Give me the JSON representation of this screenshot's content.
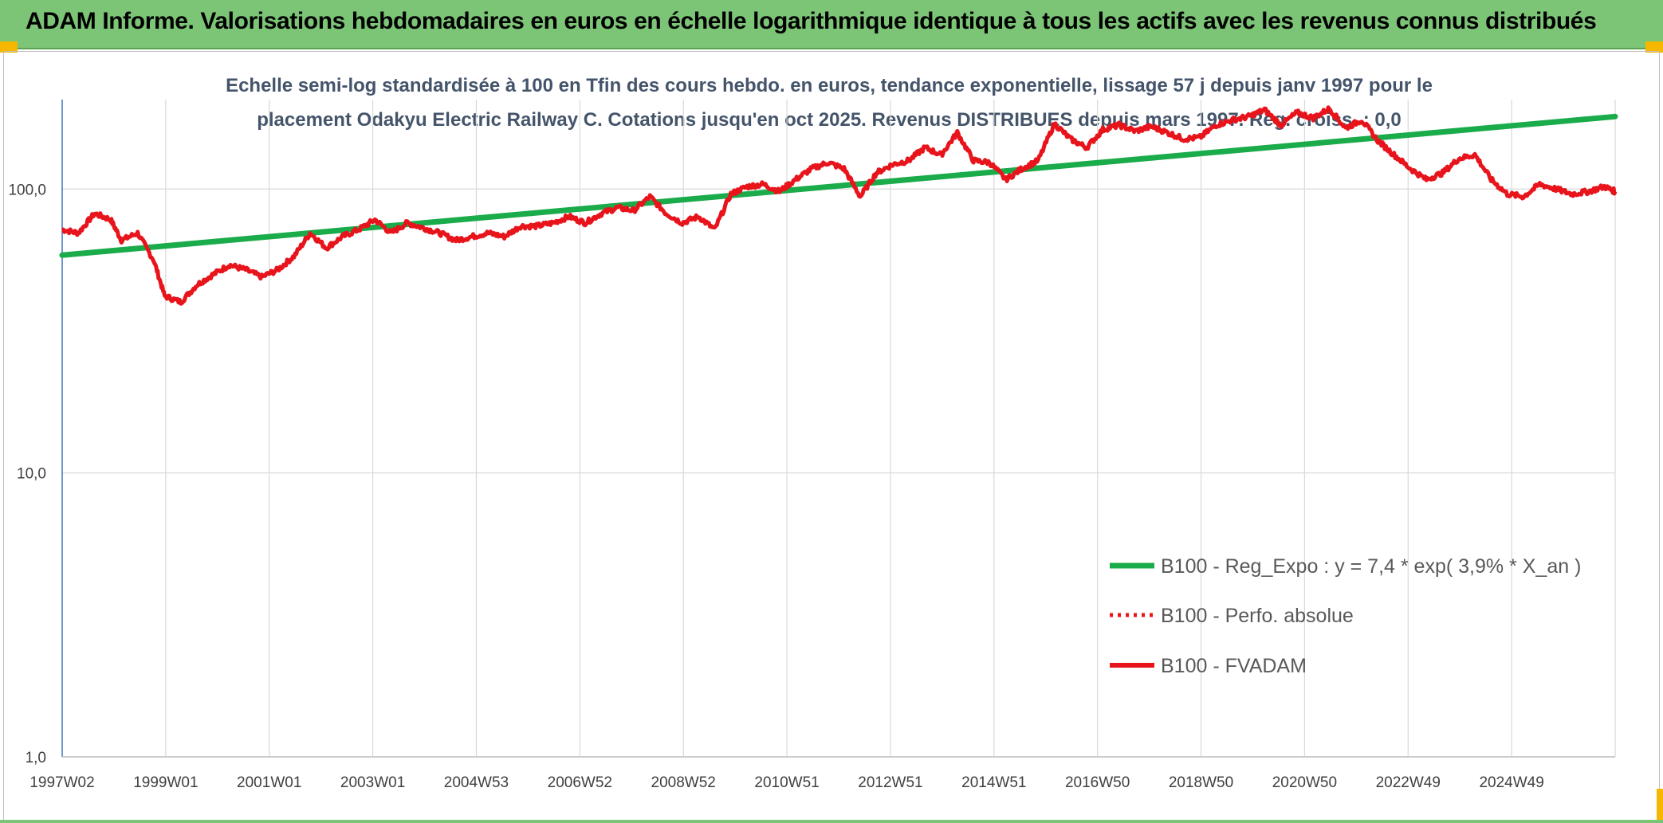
{
  "header": {
    "title": "ADAM Informe. Valorisations hebdomadaires en euros en échelle logarithmique identique à tous les actifs avec les revenus connus distribués"
  },
  "colors": {
    "banner": "#7cc576",
    "regression": "#1aab4a",
    "fvadam": "#e8141c",
    "perfo": "#e8141c",
    "grid": "#d9d9d9"
  },
  "chart_data": {
    "type": "line",
    "title_line1": "Echelle semi-log standardisée à 100 en Tfin des cours hebdo. en euros, tendance exponentielle, lissage 57 j depuis janv 1997 pour le",
    "title_line2": "placement Odakyu Electric Railway C. Cotations jusqu'en oct 2025. Revenus DISTRIBUES depuis mars 1997. Reg. croiss. : 0,0",
    "y_scale": "log",
    "ylim": [
      1,
      200
    ],
    "y_ticks": [
      "1,0",
      "10,0",
      "100,0"
    ],
    "x_tick_labels": [
      "1997W02",
      "1999W01",
      "2001W01",
      "2003W01",
      "2004W53",
      "2006W52",
      "2008W52",
      "2010W51",
      "2012W51",
      "2014W51",
      "2016W50",
      "2018W50",
      "2020W50",
      "2022W49",
      "2024W49"
    ],
    "x_range_years": [
      1997.0,
      2025.8
    ],
    "legend_position": "right-bottom",
    "series": [
      {
        "name": "B100 - Reg_Expo : y = 7,4 * exp( 3,9% *  X_an )",
        "style": "line",
        "x": [
          1997.0,
          2025.8
        ],
        "values": [
          58.5,
          180
        ]
      },
      {
        "name": "B100 - Perfo. absolue",
        "style": "dotted",
        "x": [],
        "values": []
      },
      {
        "name": "B100 - FVADAM",
        "style": "line",
        "x": [
          1997.0,
          1997.3,
          1997.6,
          1997.9,
          1998.1,
          1998.4,
          1998.7,
          1998.9,
          1999.2,
          1999.5,
          1999.8,
          2000.1,
          2000.4,
          2000.7,
          2001.0,
          2001.3,
          2001.6,
          2001.9,
          2002.2,
          2002.5,
          2002.8,
          2003.1,
          2003.4,
          2003.7,
          2004.0,
          2004.3,
          2004.6,
          2004.9,
          2005.2,
          2005.5,
          2005.8,
          2006.1,
          2006.4,
          2006.7,
          2007.0,
          2007.3,
          2007.6,
          2007.9,
          2008.2,
          2008.5,
          2008.8,
          2009.1,
          2009.4,
          2009.7,
          2010.0,
          2010.3,
          2010.6,
          2010.9,
          2011.2,
          2011.5,
          2011.8,
          2012.1,
          2012.4,
          2012.7,
          2013.0,
          2013.3,
          2013.6,
          2013.9,
          2014.2,
          2014.5,
          2014.8,
          2015.1,
          2015.4,
          2015.7,
          2016.0,
          2016.3,
          2016.6,
          2016.9,
          2017.2,
          2017.5,
          2017.8,
          2018.1,
          2018.4,
          2018.7,
          2019.0,
          2019.3,
          2019.6,
          2019.9,
          2020.2,
          2020.5,
          2020.8,
          2021.1,
          2021.4,
          2021.7,
          2022.0,
          2022.3,
          2022.6,
          2022.9,
          2023.2,
          2023.5,
          2023.8,
          2024.1,
          2024.4,
          2024.7,
          2025.0,
          2025.3,
          2025.6,
          2025.8
        ],
        "values": [
          72,
          70,
          82,
          78,
          66,
          70,
          56,
          42,
          40,
          46,
          50,
          54,
          52,
          49,
          52,
          58,
          70,
          62,
          68,
          72,
          78,
          70,
          76,
          73,
          70,
          66,
          68,
          70,
          68,
          74,
          74,
          76,
          80,
          76,
          82,
          86,
          84,
          94,
          82,
          76,
          80,
          72,
          96,
          102,
          104,
          98,
          108,
          118,
          124,
          118,
          94,
          114,
          122,
          126,
          140,
          132,
          158,
          126,
          124,
          108,
          118,
          126,
          170,
          150,
          140,
          162,
          168,
          160,
          166,
          158,
          150,
          152,
          168,
          175,
          180,
          190,
          168,
          186,
          178,
          192,
          164,
          175,
          148,
          132,
          118,
          108,
          114,
          128,
          132,
          108,
          96,
          94,
          104,
          100,
          96,
          98,
          102,
          98
        ]
      }
    ]
  }
}
